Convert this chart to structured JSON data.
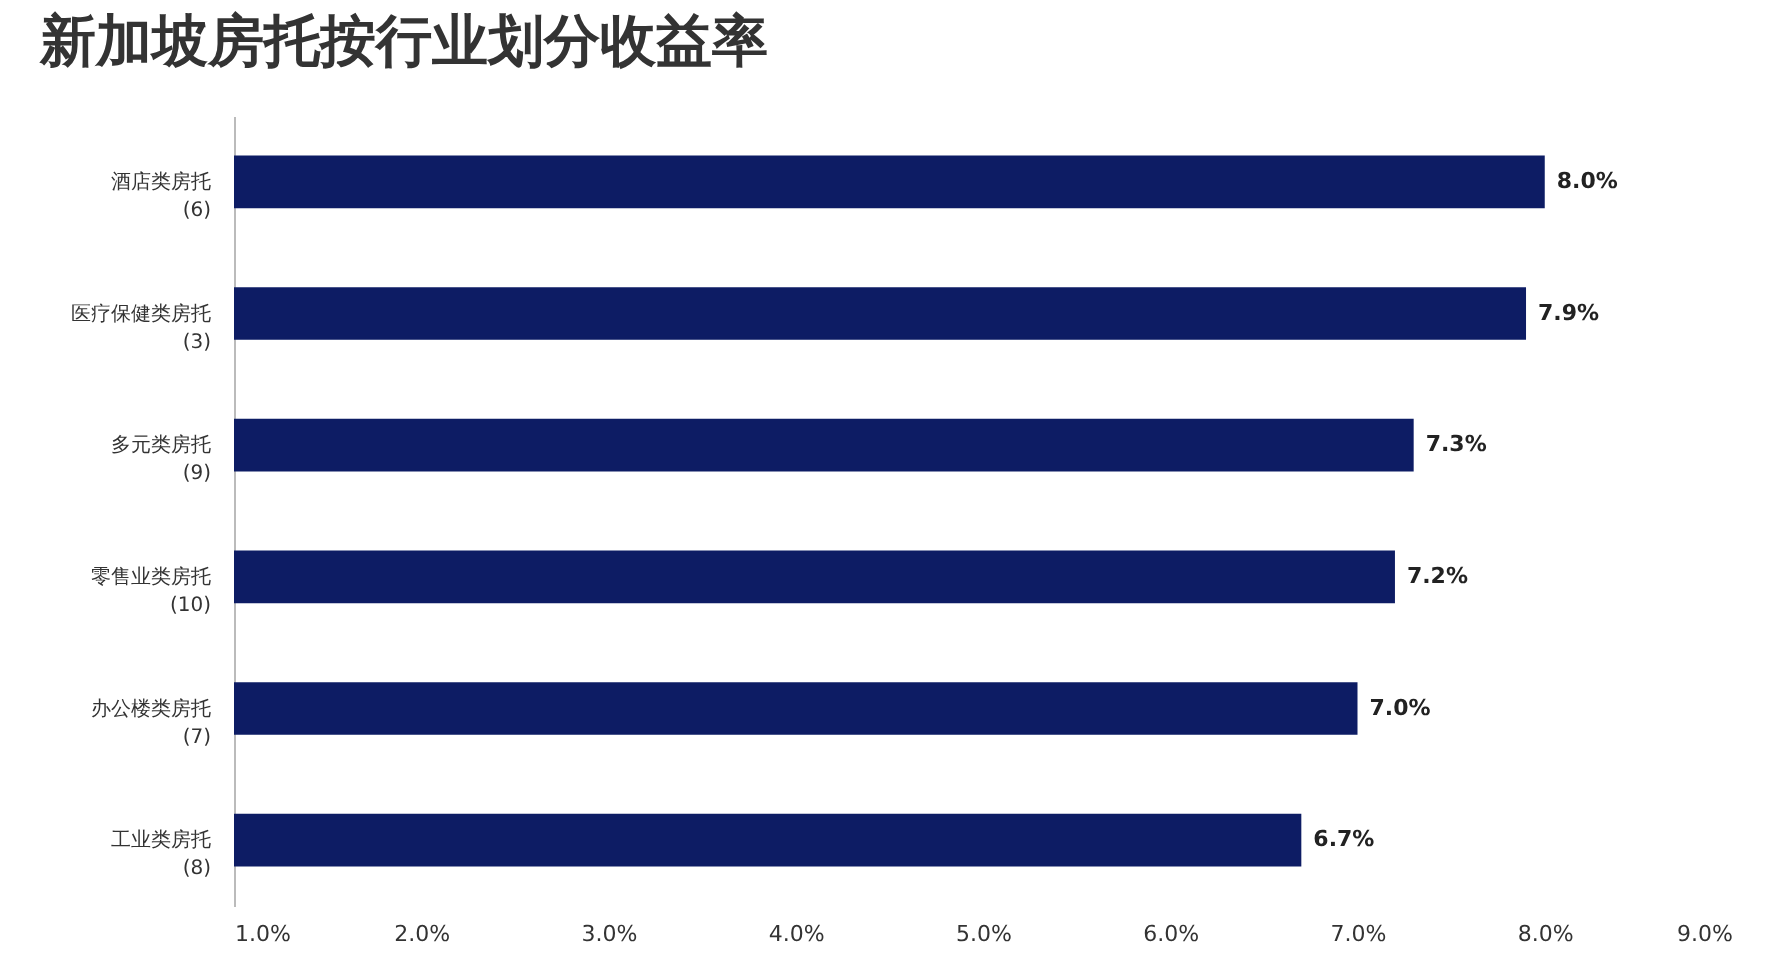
{
  "chart_data": {
    "type": "bar",
    "orientation": "horizontal",
    "title": "新加坡房托按行业划分收益率",
    "categories": [
      "酒店类房托\n(6)",
      "医疗保健类房托\n(3)",
      "多元类房托\n(9)",
      "零售业类房托\n(10)",
      "办公楼类房托\n(7)",
      "工业类房托\n(8)"
    ],
    "values": [
      8.0,
      7.9,
      7.3,
      7.2,
      7.0,
      6.7
    ],
    "value_labels": [
      "8.0%",
      "7.9%",
      "7.3%",
      "7.2%",
      "7.0%",
      "6.7%"
    ],
    "color": "#0d1c64",
    "xlim": [
      1,
      9
    ],
    "xticks": [
      {
        "value": 1,
        "label": "1.0%"
      },
      {
        "value": 2,
        "label": "2.0%"
      },
      {
        "value": 3,
        "label": "3.0%"
      },
      {
        "value": 4,
        "label": "4.0%"
      },
      {
        "value": 5,
        "label": "5.0%"
      },
      {
        "value": 6,
        "label": "6.0%"
      },
      {
        "value": 7,
        "label": "7.0%"
      },
      {
        "value": 8,
        "label": "8.0%"
      },
      {
        "value": 9,
        "label": "9.0%"
      }
    ],
    "grid": false
  }
}
